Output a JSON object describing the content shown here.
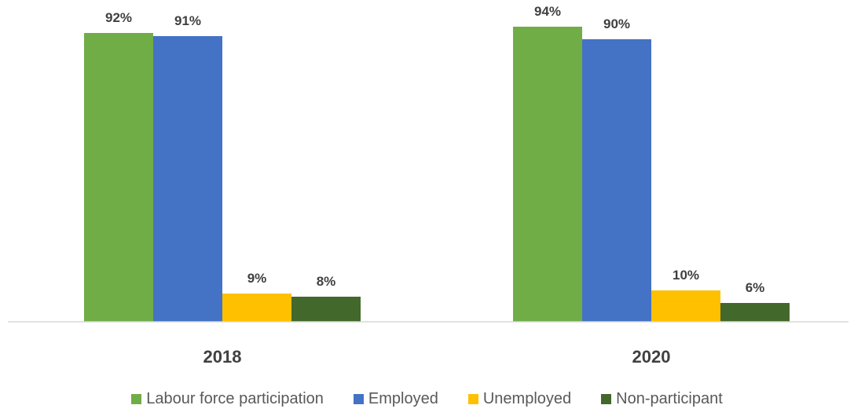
{
  "chart_data": {
    "type": "bar",
    "categories": [
      "2018",
      "2020"
    ],
    "series": [
      {
        "name": "Labour force participation",
        "color": "#70AD47",
        "values": [
          92,
          94
        ],
        "labels": [
          "92%",
          "94%"
        ]
      },
      {
        "name": "Employed",
        "color": "#4472C4",
        "values": [
          91,
          90
        ],
        "labels": [
          "91%",
          "90%"
        ]
      },
      {
        "name": "Unemployed",
        "color": "#FFC000",
        "values": [
          9,
          10
        ],
        "labels": [
          "9%",
          "10%"
        ]
      },
      {
        "name": "Non-participant",
        "color": "#43682B",
        "values": [
          8,
          6
        ],
        "labels": [
          "8%",
          "6%"
        ]
      }
    ],
    "ylim": [
      0,
      100
    ],
    "gridlines": false,
    "legend_position": "bottom",
    "title": "",
    "xlabel": "",
    "ylabel": ""
  }
}
